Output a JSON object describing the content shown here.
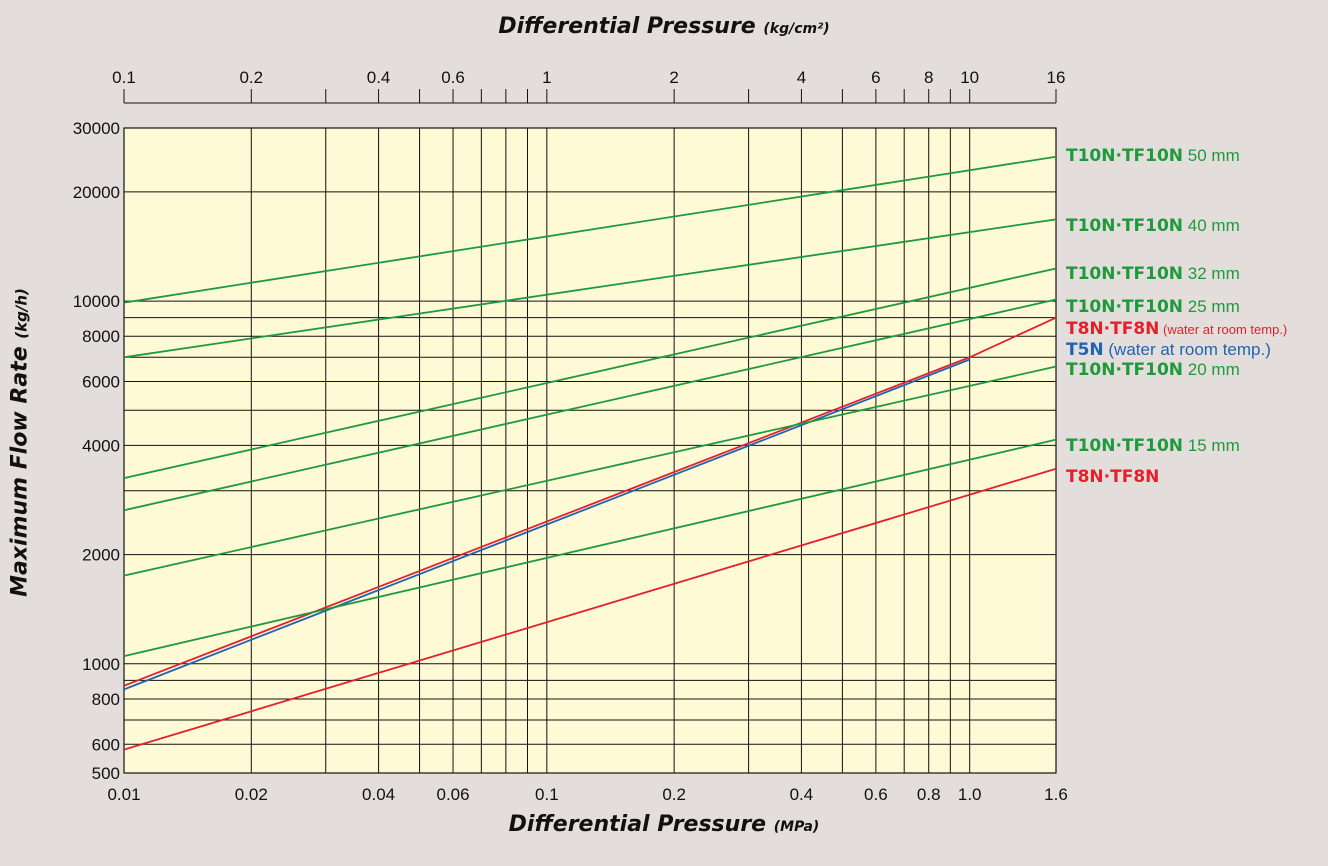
{
  "chart_data": {
    "type": "line",
    "x_scale": "log",
    "y_scale": "log",
    "grid": true,
    "plot_background": "#fffad6",
    "page_background": "#e3dedb",
    "top_axis": {
      "title": "Differential Pressure",
      "unit": "(kg/cm²)",
      "range": [
        0.1,
        16
      ],
      "ticks": [
        0.1,
        0.2,
        0.3,
        0.4,
        0.5,
        0.6,
        0.7,
        0.8,
        0.9,
        1,
        2,
        3,
        4,
        5,
        6,
        7,
        8,
        9,
        10,
        16
      ],
      "tick_labels": [
        "0.1",
        "0.2",
        "0.4",
        "0.6",
        "1",
        "2",
        "4",
        "6",
        "8",
        "10",
        "16"
      ]
    },
    "x_axis": {
      "title": "Differential Pressure",
      "unit": "(MPa)",
      "range": [
        0.01,
        1.6
      ],
      "gridlines": [
        0.01,
        0.02,
        0.03,
        0.04,
        0.05,
        0.06,
        0.07,
        0.08,
        0.09,
        0.1,
        0.2,
        0.3,
        0.4,
        0.5,
        0.6,
        0.7,
        0.8,
        0.9,
        1.0,
        1.6
      ],
      "tick_labels": [
        "0.01",
        "0.02",
        "0.04",
        "0.06",
        "0.1",
        "0.2",
        "0.4",
        "0.6",
        "0.8",
        "1.0",
        "1.6"
      ]
    },
    "y_axis": {
      "title": "Maximum Flow Rate",
      "unit": "(kg/h)",
      "range": [
        500,
        30000
      ],
      "gridlines": [
        500,
        600,
        700,
        800,
        900,
        1000,
        2000,
        3000,
        4000,
        5000,
        6000,
        7000,
        8000,
        9000,
        10000,
        20000,
        30000
      ],
      "tick_labels": [
        "500",
        "600",
        "800",
        "1000",
        "2000",
        "4000",
        "6000",
        "8000",
        "10000",
        "20000",
        "30000"
      ]
    },
    "series": [
      {
        "name": "T10N·TF10N 50 mm",
        "label_bold": "T10N·TF10N",
        "label_rest": "50 mm",
        "color": "#1e9a3c",
        "x": [
          0.01,
          1.6
        ],
        "y": [
          9900,
          25000
        ]
      },
      {
        "name": "T10N·TF10N 40 mm",
        "label_bold": "T10N·TF10N",
        "label_rest": "40 mm",
        "color": "#1e9a3c",
        "x": [
          0.01,
          1.6
        ],
        "y": [
          7000,
          16800
        ]
      },
      {
        "name": "T10N·TF10N 32 mm",
        "label_bold": "T10N·TF10N",
        "label_rest": "32 mm",
        "color": "#1e9a3c",
        "x": [
          0.01,
          1.6
        ],
        "y": [
          3250,
          12300
        ]
      },
      {
        "name": "T10N·TF10N 25 mm",
        "label_bold": "T10N·TF10N",
        "label_rest": "25 mm",
        "color": "#1e9a3c",
        "x": [
          0.01,
          1.6
        ],
        "y": [
          2650,
          10100
        ]
      },
      {
        "name": "T8N·TF8N (water at room temp.)",
        "label_bold": "T8N·TF8N",
        "label_rest": "(water at room temp.)",
        "color": "#e4202a",
        "x": [
          0.01,
          1.0,
          1.6
        ],
        "y": [
          870,
          7000,
          9000
        ]
      },
      {
        "name": "T5N (water at room temp.)",
        "label_bold": "T5N",
        "label_rest": "(water at room temp.)",
        "color": "#1f64b4",
        "x": [
          0.01,
          1.0
        ],
        "y": [
          850,
          6900
        ]
      },
      {
        "name": "T10N·TF10N 20 mm",
        "label_bold": "T10N·TF10N",
        "label_rest": "20 mm",
        "color": "#1e9a3c",
        "x": [
          0.01,
          1.6
        ],
        "y": [
          1750,
          6600
        ]
      },
      {
        "name": "T10N·TF10N 15 mm",
        "label_bold": "T10N·TF10N",
        "label_rest": "15 mm",
        "color": "#1e9a3c",
        "x": [
          0.01,
          1.6
        ],
        "y": [
          1050,
          4150
        ]
      },
      {
        "name": "T8N·TF8N",
        "label_bold": "T8N·TF8N",
        "label_rest": "",
        "color": "#e4202a",
        "x": [
          0.01,
          1.6
        ],
        "y": [
          580,
          3450
        ]
      }
    ]
  }
}
